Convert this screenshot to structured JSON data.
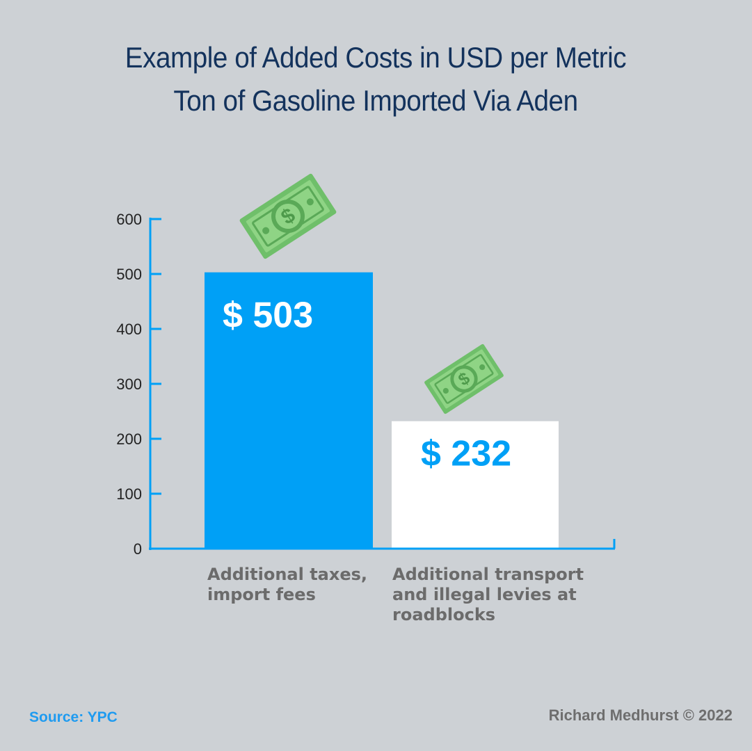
{
  "title": {
    "line1": "Example of Added Costs in USD per Metric",
    "line2": "Ton of Gasoline Imported Via Aden"
  },
  "source": "Source: YPC",
  "credit": "Richard Medhurst © 2022",
  "colors": {
    "background": "#cdd1d5",
    "accent": "#00a0f6",
    "bar2_fill": "#ffffff",
    "title": "#13325c",
    "money_green": "#7cc876"
  },
  "icons": [
    "dollar-bill-icon",
    "dollar-bill-icon"
  ],
  "chart_data": {
    "type": "bar",
    "categories": [
      [
        "Additional taxes,",
        "import fees"
      ],
      [
        "Additional transport",
        "and illegal levies at",
        "roadblocks"
      ]
    ],
    "values": [
      503,
      232
    ],
    "data_labels": [
      "$ 503",
      "$ 232"
    ],
    "ylim": [
      0,
      600
    ],
    "yticks": [
      0,
      100,
      200,
      300,
      400,
      500,
      600
    ],
    "xlabel": "",
    "ylabel": "",
    "grid": false,
    "legend": "none"
  }
}
